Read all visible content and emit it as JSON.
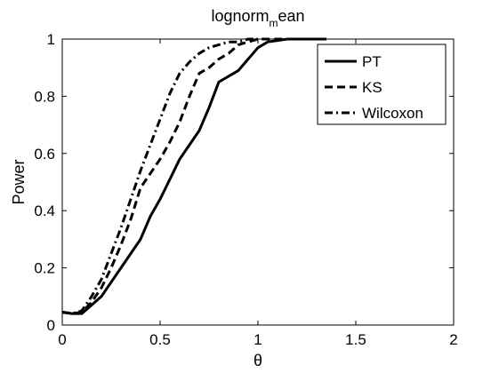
{
  "chart_data": {
    "type": "line",
    "title": "lognorm",
    "title_subscript": "m",
    "title_suffix": "ean",
    "xlabel": "θ",
    "ylabel": "Power",
    "xlim": [
      0,
      2
    ],
    "ylim": [
      0,
      1
    ],
    "x_ticks": [
      "0",
      "0.5",
      "1",
      "1.5",
      "2"
    ],
    "y_ticks": [
      "0",
      "0.2",
      "0.4",
      "0.6",
      "0.8",
      "1"
    ],
    "grid": false,
    "legend_position": "top-right",
    "series": [
      {
        "name": "PT",
        "style": "solid",
        "x": [
          0,
          0.05,
          0.1,
          0.15,
          0.2,
          0.25,
          0.3,
          0.35,
          0.4,
          0.45,
          0.5,
          0.55,
          0.6,
          0.65,
          0.7,
          0.75,
          0.8,
          0.85,
          0.9,
          0.95,
          1.0,
          1.05,
          1.1,
          1.15,
          1.2,
          1.25,
          1.3,
          1.35
        ],
        "values": [
          0.045,
          0.04,
          0.04,
          0.07,
          0.1,
          0.15,
          0.2,
          0.25,
          0.3,
          0.38,
          0.44,
          0.51,
          0.58,
          0.63,
          0.68,
          0.76,
          0.85,
          0.87,
          0.89,
          0.93,
          0.97,
          0.99,
          0.995,
          1.0,
          1.0,
          1.0,
          1.0,
          1.0
        ]
      },
      {
        "name": "KS",
        "style": "dashed",
        "x": [
          0,
          0.05,
          0.1,
          0.15,
          0.2,
          0.25,
          0.3,
          0.35,
          0.4,
          0.45,
          0.5,
          0.55,
          0.6,
          0.65,
          0.7,
          0.75,
          0.8,
          0.85,
          0.9,
          0.95,
          1.0,
          1.05,
          1.1,
          1.15,
          1.2
        ],
        "values": [
          0.045,
          0.04,
          0.045,
          0.08,
          0.13,
          0.2,
          0.28,
          0.37,
          0.48,
          0.53,
          0.58,
          0.64,
          0.71,
          0.8,
          0.88,
          0.9,
          0.93,
          0.95,
          0.98,
          0.99,
          1.0,
          1.0,
          1.0,
          1.0,
          1.0
        ]
      },
      {
        "name": "Wilcoxon",
        "style": "dashdot",
        "x": [
          0,
          0.05,
          0.1,
          0.15,
          0.2,
          0.25,
          0.3,
          0.35,
          0.4,
          0.45,
          0.5,
          0.55,
          0.6,
          0.65,
          0.7,
          0.75,
          0.8,
          0.85,
          0.9,
          0.95,
          1.0
        ],
        "values": [
          0.045,
          0.04,
          0.05,
          0.1,
          0.16,
          0.25,
          0.34,
          0.44,
          0.54,
          0.63,
          0.72,
          0.81,
          0.88,
          0.92,
          0.95,
          0.97,
          0.98,
          0.99,
          0.99,
          1.0,
          1.0
        ]
      }
    ]
  }
}
